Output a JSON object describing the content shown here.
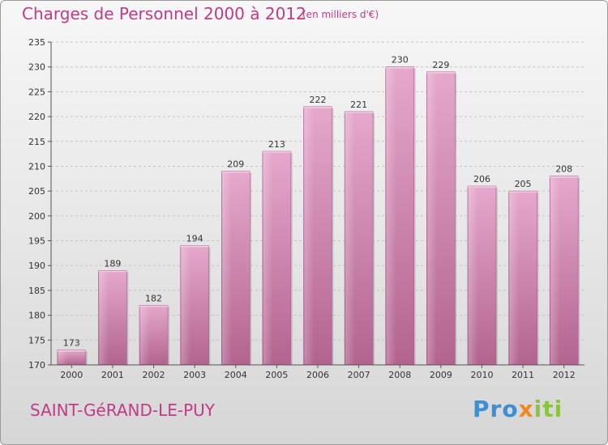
{
  "title": "Charges de Personnel 2000 à 2012",
  "unit_note": "(en milliers d'€)",
  "location": "SAINT-GéRAND-LE-PUY",
  "brand": {
    "part1": "Pro",
    "part2": "x",
    "part3": "iti"
  },
  "colors": {
    "bar": "#c880a8",
    "title": "#c13a86"
  },
  "chart_data": {
    "type": "bar",
    "title": "Charges de Personnel 2000 à 2012",
    "categories": [
      "2000",
      "2001",
      "2002",
      "2003",
      "2004",
      "2005",
      "2006",
      "2007",
      "2008",
      "2009",
      "2010",
      "2011",
      "2012"
    ],
    "values": [
      173,
      189,
      182,
      194,
      209,
      213,
      222,
      221,
      230,
      229,
      206,
      205,
      208
    ],
    "ylim": [
      170,
      235
    ],
    "yticks": [
      170,
      175,
      180,
      185,
      190,
      195,
      200,
      205,
      210,
      215,
      220,
      225,
      230,
      235
    ],
    "grid": true,
    "xlabel": "",
    "ylabel": ""
  }
}
